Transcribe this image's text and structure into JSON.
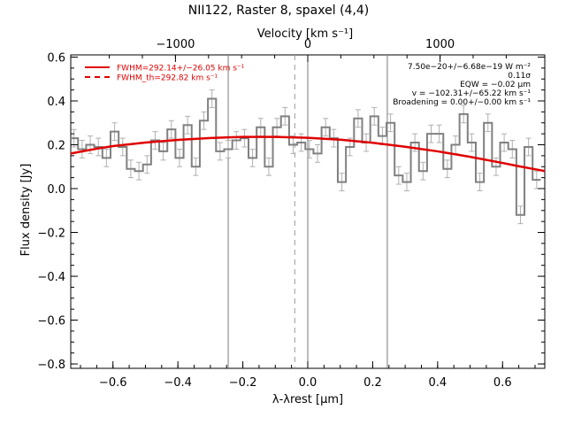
{
  "chart_data": {
    "type": "line",
    "title": "NII122, Raster 8, spaxel (4,4)",
    "xlabel": "λ-λrest [μm]",
    "ylabel": "Flux density [Jy]",
    "top_axis_label": "Velocity [km s⁻¹]",
    "xlim": [
      -0.73,
      0.73
    ],
    "ylim": [
      -0.82,
      0.61
    ],
    "x_ticks": [
      -0.6,
      -0.4,
      -0.2,
      0.0,
      0.2,
      0.4,
      0.6
    ],
    "x_tick_labels": [
      "−0.6",
      "−0.4",
      "−0.2",
      "0.0",
      "0.2",
      "0.4",
      "0.6"
    ],
    "y_ticks": [
      0.6,
      0.4,
      0.2,
      0.0,
      -0.2,
      -0.4,
      -0.6,
      -0.8
    ],
    "y_tick_labels": [
      "0.6",
      "0.4",
      "0.2",
      "0.0",
      "−0.2",
      "−0.4",
      "−0.6",
      "−0.8"
    ],
    "top_ticks": [
      -1000,
      0,
      1000
    ],
    "top_tick_labels": [
      "−1000",
      "0",
      "1000"
    ],
    "legend": [
      {
        "text": "FWHM=292.14+/−26.05 km s⁻¹",
        "color": "#e00000",
        "style": "solid"
      },
      {
        "text": "FWHM_th=292.82 km s⁻¹",
        "color": "#e00000",
        "style": "dashed"
      }
    ],
    "annotations": [
      "7.50e−20+/−6.68e−19 W m⁻²",
      "0.11σ",
      "EQW = −0.02 μm",
      "v = −102.31+/−65.22 km s⁻¹",
      "Broadening = 0.00+/−0.00 km s⁻¹"
    ],
    "vertical_lines": {
      "solid": [
        -0.245,
        0.0,
        0.245
      ],
      "dashed": [
        -0.04
      ]
    },
    "series": [
      {
        "name": "spectrum",
        "style": "step",
        "color": "#808080",
        "x": [
          -0.72,
          -0.695,
          -0.67,
          -0.645,
          -0.62,
          -0.595,
          -0.57,
          -0.545,
          -0.52,
          -0.495,
          -0.47,
          -0.445,
          -0.42,
          -0.395,
          -0.37,
          -0.345,
          -0.32,
          -0.295,
          -0.27,
          -0.245,
          -0.22,
          -0.195,
          -0.17,
          -0.145,
          -0.12,
          -0.095,
          -0.07,
          -0.045,
          -0.02,
          0.005,
          0.03,
          0.055,
          0.08,
          0.105,
          0.13,
          0.155,
          0.18,
          0.205,
          0.23,
          0.255,
          0.28,
          0.305,
          0.33,
          0.355,
          0.38,
          0.405,
          0.43,
          0.455,
          0.48,
          0.505,
          0.53,
          0.555,
          0.58,
          0.605,
          0.63,
          0.655,
          0.68,
          0.705
        ],
        "y": [
          0.23,
          0.18,
          0.2,
          0.19,
          0.14,
          0.26,
          0.19,
          0.09,
          0.08,
          0.11,
          0.22,
          0.17,
          0.27,
          0.14,
          0.29,
          0.1,
          0.31,
          0.41,
          0.17,
          0.18,
          0.22,
          0.23,
          0.14,
          0.28,
          0.1,
          0.28,
          0.33,
          0.2,
          0.21,
          0.18,
          0.16,
          0.28,
          0.23,
          0.03,
          0.19,
          0.32,
          0.21,
          0.33,
          0.24,
          0.3,
          0.06,
          0.03,
          0.21,
          0.08,
          0.25,
          0.25,
          0.09,
          0.2,
          0.34,
          0.21,
          0.03,
          0.3,
          0.1,
          0.21,
          0.18,
          -0.12,
          0.19,
          0.04
        ],
        "error": [
          0.04,
          0.04,
          0.04,
          0.04,
          0.04,
          0.04,
          0.04,
          0.04,
          0.04,
          0.04,
          0.04,
          0.04,
          0.04,
          0.04,
          0.04,
          0.04,
          0.04,
          0.04,
          0.04,
          0.04,
          0.04,
          0.04,
          0.04,
          0.04,
          0.04,
          0.04,
          0.04,
          0.04,
          0.04,
          0.04,
          0.04,
          0.04,
          0.04,
          0.04,
          0.04,
          0.04,
          0.04,
          0.04,
          0.04,
          0.04,
          0.04,
          0.04,
          0.04,
          0.04,
          0.04,
          0.04,
          0.04,
          0.04,
          0.04,
          0.04,
          0.04,
          0.04,
          0.04,
          0.04,
          0.04,
          0.04,
          0.04,
          0.04
        ]
      },
      {
        "name": "gaussian fit",
        "style": "line",
        "color": "#e00000",
        "x": [
          -0.73,
          -0.65,
          -0.6,
          -0.5,
          -0.4,
          -0.3,
          -0.2,
          -0.1,
          0.0,
          0.1,
          0.2,
          0.3,
          0.4,
          0.5,
          0.6,
          0.65,
          0.73
        ],
        "y": [
          0.16,
          0.182,
          0.194,
          0.21,
          0.222,
          0.231,
          0.236,
          0.236,
          0.232,
          0.223,
          0.209,
          0.191,
          0.17,
          0.145,
          0.117,
          0.102,
          0.08
        ]
      }
    ],
    "grid": false
  }
}
